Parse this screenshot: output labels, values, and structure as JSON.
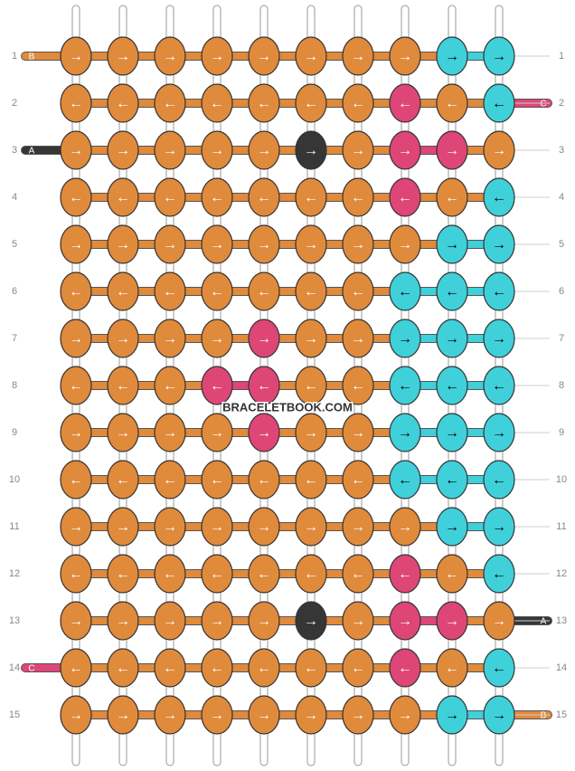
{
  "watermark": "BRACELETBOOK.COM",
  "palette": {
    "o": "#e08a3c",
    "c": "#3fd0da",
    "p": "#de4677",
    "k": "#363636"
  },
  "rows": [
    {
      "label": "1",
      "left_strand": {
        "label": "B",
        "color": "#e08a3c"
      },
      "arrows": [
        "→",
        "→",
        "→",
        "→",
        "→",
        "→",
        "→",
        "→",
        "→",
        "→"
      ],
      "colors": [
        "o",
        "o",
        "o",
        "o",
        "o",
        "o",
        "o",
        "o",
        "c",
        "c"
      ]
    },
    {
      "label": "2",
      "right_strand": {
        "label": "C",
        "color": "#de4677"
      },
      "arrows": [
        "←",
        "←",
        "←",
        "←",
        "←",
        "←",
        "←",
        "←",
        "←",
        "←"
      ],
      "colors": [
        "o",
        "o",
        "o",
        "o",
        "o",
        "o",
        "o",
        "p",
        "o",
        "c"
      ]
    },
    {
      "label": "3",
      "left_strand": {
        "label": "A",
        "color": "#363636"
      },
      "arrows": [
        "→",
        "→",
        "→",
        "→",
        "→",
        "→",
        "→",
        "→",
        "→",
        "→"
      ],
      "colors": [
        "o",
        "o",
        "o",
        "o",
        "o",
        "k",
        "o",
        "p",
        "p",
        "o"
      ]
    },
    {
      "label": "4",
      "arrows": [
        "←",
        "←",
        "←",
        "←",
        "←",
        "←",
        "←",
        "←",
        "←",
        "←"
      ],
      "colors": [
        "o",
        "o",
        "o",
        "o",
        "o",
        "o",
        "o",
        "p",
        "o",
        "c"
      ]
    },
    {
      "label": "5",
      "arrows": [
        "→",
        "→",
        "→",
        "→",
        "→",
        "→",
        "→",
        "→",
        "→",
        "→"
      ],
      "colors": [
        "o",
        "o",
        "o",
        "o",
        "o",
        "o",
        "o",
        "o",
        "c",
        "c"
      ]
    },
    {
      "label": "6",
      "arrows": [
        "←",
        "←",
        "←",
        "←",
        "←",
        "←",
        "←",
        "←",
        "←",
        "←"
      ],
      "colors": [
        "o",
        "o",
        "o",
        "o",
        "o",
        "o",
        "o",
        "c",
        "c",
        "c"
      ]
    },
    {
      "label": "7",
      "arrows": [
        "→",
        "→",
        "→",
        "→",
        "→",
        "→",
        "→",
        "→",
        "→",
        "→"
      ],
      "colors": [
        "o",
        "o",
        "o",
        "o",
        "p",
        "o",
        "o",
        "c",
        "c",
        "c"
      ]
    },
    {
      "label": "8",
      "arrows": [
        "←",
        "←",
        "←",
        "←",
        "←",
        "←",
        "←",
        "←",
        "←",
        "←"
      ],
      "colors": [
        "o",
        "o",
        "o",
        "p",
        "p",
        "o",
        "o",
        "c",
        "c",
        "c"
      ]
    },
    {
      "label": "9",
      "arrows": [
        "→",
        "→",
        "→",
        "→",
        "→",
        "→",
        "→",
        "→",
        "→",
        "→"
      ],
      "colors": [
        "o",
        "o",
        "o",
        "o",
        "p",
        "o",
        "o",
        "c",
        "c",
        "c"
      ]
    },
    {
      "label": "10",
      "arrows": [
        "←",
        "←",
        "←",
        "←",
        "←",
        "←",
        "←",
        "←",
        "←",
        "←"
      ],
      "colors": [
        "o",
        "o",
        "o",
        "o",
        "o",
        "o",
        "o",
        "c",
        "c",
        "c"
      ]
    },
    {
      "label": "11",
      "arrows": [
        "→",
        "→",
        "→",
        "→",
        "→",
        "→",
        "→",
        "→",
        "→",
        "→"
      ],
      "colors": [
        "o",
        "o",
        "o",
        "o",
        "o",
        "o",
        "o",
        "o",
        "c",
        "c"
      ]
    },
    {
      "label": "12",
      "arrows": [
        "←",
        "←",
        "←",
        "←",
        "←",
        "←",
        "←",
        "←",
        "←",
        "←"
      ],
      "colors": [
        "o",
        "o",
        "o",
        "o",
        "o",
        "o",
        "o",
        "p",
        "o",
        "c"
      ]
    },
    {
      "label": "13",
      "right_strand": {
        "label": "A",
        "color": "#363636"
      },
      "arrows": [
        "→",
        "→",
        "→",
        "→",
        "→",
        "→",
        "→",
        "→",
        "→",
        "→"
      ],
      "colors": [
        "o",
        "o",
        "o",
        "o",
        "o",
        "k",
        "o",
        "p",
        "p",
        "o"
      ]
    },
    {
      "label": "14",
      "left_strand": {
        "label": "C",
        "color": "#de4677"
      },
      "arrows": [
        "←",
        "←",
        "←",
        "←",
        "←",
        "←",
        "←",
        "←",
        "←",
        "←"
      ],
      "colors": [
        "o",
        "o",
        "o",
        "o",
        "o",
        "o",
        "o",
        "p",
        "o",
        "c"
      ]
    },
    {
      "label": "15",
      "right_strand": {
        "label": "B",
        "color": "#e08a3c"
      },
      "arrows": [
        "→",
        "→",
        "→",
        "→",
        "→",
        "→",
        "→",
        "→",
        "→",
        "→"
      ],
      "colors": [
        "o",
        "o",
        "o",
        "o",
        "o",
        "o",
        "o",
        "o",
        "c",
        "c"
      ]
    }
  ]
}
